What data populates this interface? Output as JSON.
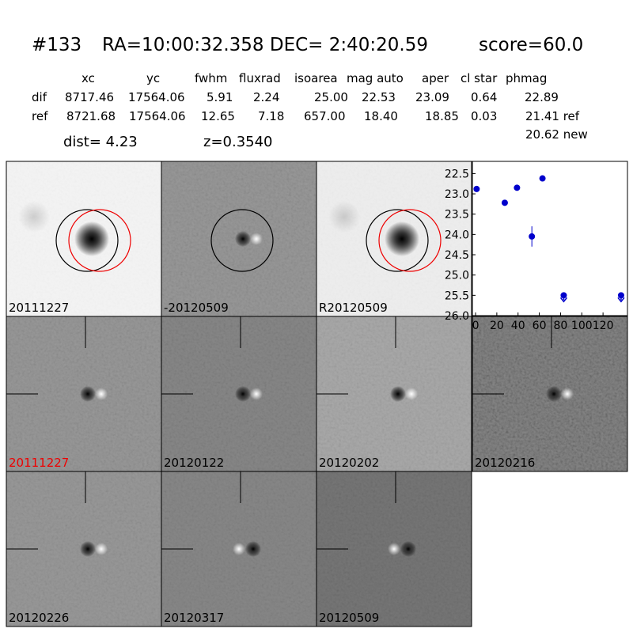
{
  "header": {
    "id": "#133",
    "coords": "RA=10:00:32.358 DEC= 2:40:20.59",
    "score": "score=60.0"
  },
  "table": {
    "columns": [
      "xc",
      "yc",
      "fwhm",
      "fluxrad",
      "isoarea",
      "mag auto",
      "aper",
      "cl star",
      "phmag"
    ],
    "rows": [
      [
        "dif",
        "8717.46",
        "17564.06",
        "5.91",
        "2.24",
        "25.00",
        "22.53",
        "23.09",
        "0.64",
        "22.89"
      ],
      [
        "ref",
        "8721.68",
        "17564.06",
        "12.65",
        "7.18",
        "657.00",
        "18.40",
        "18.85",
        "0.03",
        "21.41 ref"
      ]
    ],
    "extra": "20.62 new",
    "dist": "dist=  4.23",
    "z": "z=0.3540"
  },
  "panels": [
    "20111227",
    "-20120509",
    "R20120509",
    "20111227",
    "20120122",
    "20120202",
    "20120216",
    "20120226",
    "20120317",
    "20120509"
  ],
  "chart_data": {
    "type": "scatter",
    "x": [
      1,
      27.5,
      39,
      53,
      63,
      83,
      137
    ],
    "values": [
      22.88,
      23.22,
      22.85,
      24.05,
      22.62,
      25.5,
      25.5
    ],
    "errors": [
      0.04,
      0.06,
      0.04,
      0.25,
      0.03,
      null,
      null
    ],
    "upper_limit": [
      false,
      false,
      false,
      false,
      false,
      true,
      true
    ],
    "color": "#0000cc",
    "xlim": [
      -3,
      143
    ],
    "ylim": [
      26.0,
      22.2
    ],
    "xticks": [
      0,
      20,
      40,
      60,
      80,
      100,
      120
    ],
    "yticks": [
      22.5,
      {
        "value": 23,
        "label": "23.0"
      },
      23.5,
      {
        "value": 24,
        "label": "24.0"
      },
      24.5,
      {
        "value": 25,
        "label": "25.0"
      },
      25.5,
      {
        "value": 26,
        "label": "26.0"
      }
    ]
  }
}
